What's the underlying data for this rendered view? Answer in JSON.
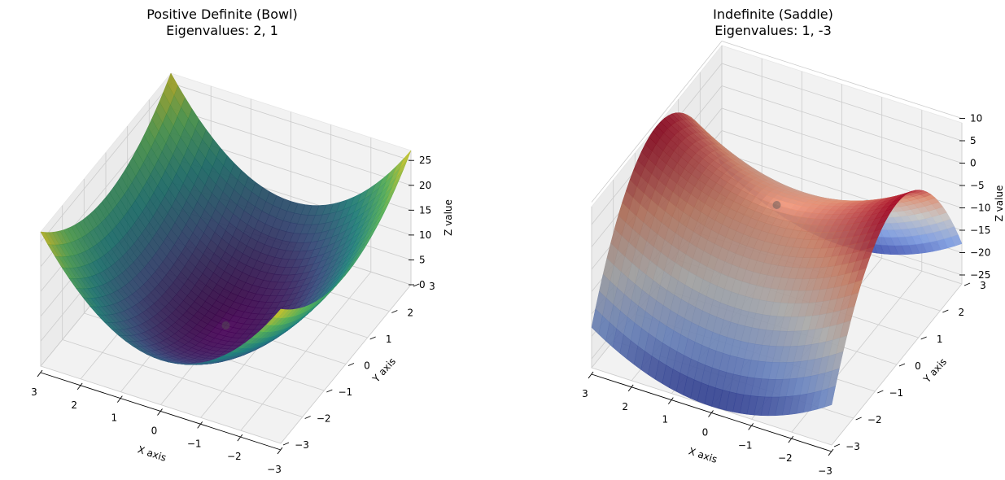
{
  "chart_data": [
    {
      "type": "surface3d",
      "title": "Positive Definite (Bowl)",
      "subtitle": "Eigenvalues: 2, 1",
      "function": "z = 2*x^2 + y^2",
      "eigenvalues": [
        2,
        1
      ],
      "xlabel": "X axis",
      "ylabel": "Y axis",
      "zlabel": "Z value",
      "xlim": [
        -3,
        3
      ],
      "ylim": [
        -3,
        3
      ],
      "zlim": [
        0,
        27
      ],
      "xticks": [
        -3,
        -2,
        -1,
        0,
        1,
        2,
        3
      ],
      "yticks": [
        -3,
        -2,
        -1,
        0,
        1,
        2,
        3
      ],
      "zticks": [
        0,
        5,
        10,
        15,
        20,
        25
      ],
      "colormap": "viridis",
      "colormap_colors": [
        "#440154",
        "#3b528b",
        "#21918c",
        "#5ec962",
        "#fde725"
      ],
      "critical_point": [
        0,
        0,
        0
      ]
    },
    {
      "type": "surface3d",
      "title": "Indefinite (Saddle)",
      "subtitle": "Eigenvalues: 1, -3",
      "function": "z = x^2 - 3*y^2",
      "eigenvalues": [
        1,
        -3
      ],
      "xlabel": "X axis",
      "ylabel": "Y axis",
      "zlabel": "Z value",
      "xlim": [
        -3,
        3
      ],
      "ylim": [
        -3,
        3
      ],
      "zlim": [
        -27,
        9
      ],
      "xticks": [
        -3,
        -2,
        -1,
        0,
        1,
        2,
        3
      ],
      "yticks": [
        -3,
        -2,
        -1,
        0,
        1,
        2,
        3
      ],
      "zticks": [
        10,
        5,
        0,
        -5,
        -10,
        -15,
        -20,
        -25
      ],
      "colormap": "coolwarm",
      "colormap_colors": [
        "#3b4cc0",
        "#8db0fe",
        "#dddddd",
        "#f49a7b",
        "#b40426"
      ],
      "critical_point": [
        0,
        0,
        0
      ]
    }
  ]
}
